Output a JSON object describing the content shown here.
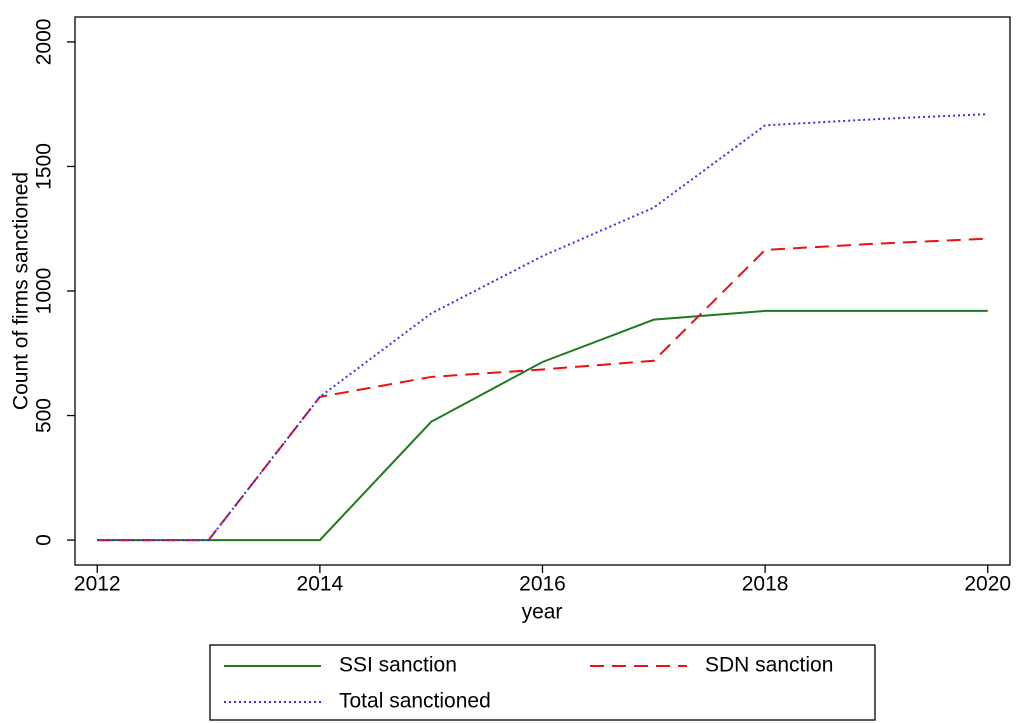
{
  "chart_data": {
    "type": "line",
    "x": [
      2012,
      2013,
      2014,
      2015,
      2016,
      2017,
      2018,
      2019,
      2020
    ],
    "xlabel": "year",
    "ylabel": "Count of firms sanctioned",
    "xlim": [
      2011.8,
      2020.2
    ],
    "xticks": [
      2012,
      2014,
      2016,
      2018,
      2020
    ],
    "ylim": [
      -100,
      2100
    ],
    "yticks": [
      0,
      500,
      1000,
      1500,
      2000
    ],
    "legend": "bottom",
    "series": [
      {
        "name": "SSI sanction",
        "color": "#1f7a1f",
        "style": "solid",
        "values": [
          0,
          0,
          0,
          475,
          715,
          885,
          920,
          920,
          920
        ]
      },
      {
        "name": "SDN sanction",
        "color": "#ee1111",
        "style": "dashed",
        "values": [
          0,
          0,
          575,
          655,
          685,
          720,
          1165,
          1190,
          1210
        ]
      },
      {
        "name": "Total sanctioned",
        "color": "#3333dd",
        "style": "dotted",
        "values": [
          0,
          0,
          575,
          910,
          1140,
          1335,
          1665,
          1690,
          1710
        ]
      }
    ]
  }
}
